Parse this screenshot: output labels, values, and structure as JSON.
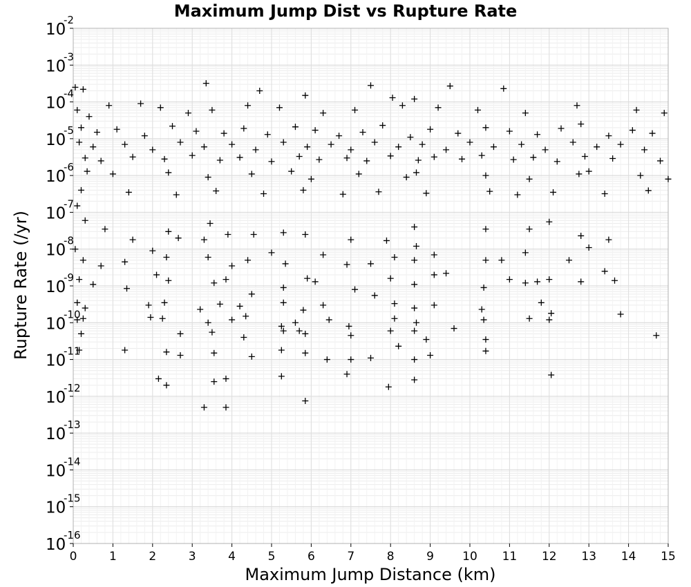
{
  "chart_data": {
    "type": "scatter",
    "title": "Maximum Jump Dist vs Rupture Rate",
    "xlabel": "Maximum Jump Distance (km)",
    "ylabel": "Rupture Rate (/yr)",
    "xlim": [
      0,
      15
    ],
    "ylim": [
      1e-16,
      0.01
    ],
    "y_scale": "log",
    "x_ticks": [
      "0",
      "1",
      "2",
      "3",
      "4",
      "5",
      "6",
      "7",
      "8",
      "9",
      "10",
      "11",
      "12",
      "13",
      "14",
      "15"
    ],
    "y_ticks": [
      {
        "base": "10",
        "exp": "-16"
      },
      {
        "base": "10",
        "exp": "-15"
      },
      {
        "base": "10",
        "exp": "-14"
      },
      {
        "base": "10",
        "exp": "-13"
      },
      {
        "base": "10",
        "exp": "-12"
      },
      {
        "base": "10",
        "exp": "-11"
      },
      {
        "base": "10",
        "exp": "-10"
      },
      {
        "base": "10",
        "exp": "-9"
      },
      {
        "base": "10",
        "exp": "-8"
      },
      {
        "base": "10",
        "exp": "-7"
      },
      {
        "base": "10",
        "exp": "-6"
      },
      {
        "base": "10",
        "exp": "-5"
      },
      {
        "base": "10",
        "exp": "-4"
      },
      {
        "base": "10",
        "exp": "-3"
      },
      {
        "base": "10",
        "exp": "-2"
      }
    ],
    "grid": true,
    "marker": "plus",
    "marker_color": "#000000",
    "points": [
      [
        0.05,
        0.00025
      ],
      [
        0.25,
        0.00022
      ],
      [
        3.35,
        0.00032
      ],
      [
        4.7,
        0.0002
      ],
      [
        5.85,
        0.00015
      ],
      [
        7.5,
        0.00028
      ],
      [
        8.05,
        0.00013
      ],
      [
        8.6,
        0.00012
      ],
      [
        9.5,
        0.00027
      ],
      [
        10.85,
        0.00023
      ],
      [
        0.1,
        6e-05
      ],
      [
        0.4,
        4e-05
      ],
      [
        0.9,
        8e-05
      ],
      [
        1.7,
        9e-05
      ],
      [
        2.2,
        7e-05
      ],
      [
        2.9,
        5e-05
      ],
      [
        3.5,
        6e-05
      ],
      [
        4.4,
        8e-05
      ],
      [
        5.2,
        7e-05
      ],
      [
        6.3,
        5e-05
      ],
      [
        7.1,
        6e-05
      ],
      [
        8.3,
        8e-05
      ],
      [
        9.2,
        7e-05
      ],
      [
        10.2,
        6e-05
      ],
      [
        11.4,
        5e-05
      ],
      [
        12.7,
        8e-05
      ],
      [
        14.2,
        6e-05
      ],
      [
        14.9,
        5e-05
      ],
      [
        0.2,
        2e-05
      ],
      [
        0.6,
        1.5e-05
      ],
      [
        1.1,
        1.8e-05
      ],
      [
        1.8,
        1.2e-05
      ],
      [
        2.5,
        2.2e-05
      ],
      [
        3.1,
        1.6e-05
      ],
      [
        3.8,
        1.4e-05
      ],
      [
        4.3,
        1.9e-05
      ],
      [
        4.9,
        1.3e-05
      ],
      [
        5.6,
        2.1e-05
      ],
      [
        6.1,
        1.7e-05
      ],
      [
        6.7,
        1.2e-05
      ],
      [
        7.3,
        1.5e-05
      ],
      [
        7.8,
        2.3e-05
      ],
      [
        8.5,
        1.1e-05
      ],
      [
        9.0,
        1.8e-05
      ],
      [
        9.7,
        1.4e-05
      ],
      [
        10.4,
        2e-05
      ],
      [
        11.0,
        1.6e-05
      ],
      [
        11.7,
        1.3e-05
      ],
      [
        12.3,
        1.9e-05
      ],
      [
        12.8,
        2.5e-05
      ],
      [
        13.5,
        1.2e-05
      ],
      [
        14.1,
        1.7e-05
      ],
      [
        14.6,
        1.4e-05
      ],
      [
        0.15,
        8e-06
      ],
      [
        0.5,
        6e-06
      ],
      [
        1.3,
        7e-06
      ],
      [
        2.0,
        5e-06
      ],
      [
        2.7,
        8e-06
      ],
      [
        3.3,
        6e-06
      ],
      [
        4.0,
        7e-06
      ],
      [
        4.6,
        5e-06
      ],
      [
        5.3,
        8e-06
      ],
      [
        5.9,
        6e-06
      ],
      [
        6.5,
        7e-06
      ],
      [
        7.0,
        5e-06
      ],
      [
        7.6,
        8e-06
      ],
      [
        8.2,
        6e-06
      ],
      [
        8.8,
        7e-06
      ],
      [
        9.4,
        5e-06
      ],
      [
        10.0,
        8e-06
      ],
      [
        10.6,
        6e-06
      ],
      [
        11.3,
        7e-06
      ],
      [
        11.9,
        5e-06
      ],
      [
        12.6,
        8e-06
      ],
      [
        13.2,
        6e-06
      ],
      [
        13.8,
        7e-06
      ],
      [
        14.4,
        5e-06
      ],
      [
        0.3,
        3e-06
      ],
      [
        0.7,
        2.5e-06
      ],
      [
        1.5,
        3.2e-06
      ],
      [
        2.3,
        2.8e-06
      ],
      [
        3.0,
        3.5e-06
      ],
      [
        3.7,
        2.6e-06
      ],
      [
        4.2,
        3.1e-06
      ],
      [
        5.0,
        2.4e-06
      ],
      [
        5.7,
        3.3e-06
      ],
      [
        6.2,
        2.7e-06
      ],
      [
        6.9,
        3e-06
      ],
      [
        7.4,
        2.5e-06
      ],
      [
        8.0,
        3.4e-06
      ],
      [
        8.7,
        2.6e-06
      ],
      [
        9.1,
        3.2e-06
      ],
      [
        9.8,
        2.8e-06
      ],
      [
        10.3,
        3.5e-06
      ],
      [
        11.1,
        2.7e-06
      ],
      [
        11.6,
        3.1e-06
      ],
      [
        12.2,
        2.4e-06
      ],
      [
        12.9,
        3.3e-06
      ],
      [
        13.6,
        2.9e-06
      ],
      [
        14.8,
        2.5e-06
      ],
      [
        0.35,
        1.3e-06
      ],
      [
        1.0,
        1.1e-06
      ],
      [
        2.4,
        1.2e-06
      ],
      [
        3.4,
        9e-07
      ],
      [
        4.5,
        1.1e-06
      ],
      [
        5.5,
        1.3e-06
      ],
      [
        6.0,
        8e-07
      ],
      [
        7.2,
        1.1e-06
      ],
      [
        8.4,
        9e-07
      ],
      [
        8.65,
        1.2e-06
      ],
      [
        10.4,
        1e-06
      ],
      [
        11.5,
        8e-07
      ],
      [
        12.75,
        1.1e-06
      ],
      [
        13.0,
        1.3e-06
      ],
      [
        14.3,
        1e-06
      ],
      [
        15.0,
        8e-07
      ],
      [
        0.2,
        4e-07
      ],
      [
        1.4,
        3.5e-07
      ],
      [
        2.6,
        3e-07
      ],
      [
        3.6,
        3.8e-07
      ],
      [
        4.8,
        3.2e-07
      ],
      [
        5.8,
        4e-07
      ],
      [
        6.8,
        3.1e-07
      ],
      [
        7.7,
        3.6e-07
      ],
      [
        8.9,
        3.3e-07
      ],
      [
        10.5,
        3.7e-07
      ],
      [
        11.2,
        3e-07
      ],
      [
        12.1,
        3.5e-07
      ],
      [
        13.4,
        3.2e-07
      ],
      [
        14.5,
        3.9e-07
      ],
      [
        0.1,
        1.5e-07
      ],
      [
        0.3,
        6e-08
      ],
      [
        0.8,
        3.5e-08
      ],
      [
        1.5,
        1.8e-08
      ],
      [
        2.4,
        3e-08
      ],
      [
        3.45,
        5e-08
      ],
      [
        3.9,
        2.5e-08
      ],
      [
        4.55,
        2.5e-08
      ],
      [
        5.3,
        2.8e-08
      ],
      [
        5.85,
        2.5e-08
      ],
      [
        7.0,
        1.8e-08
      ],
      [
        7.9,
        1.7e-08
      ],
      [
        8.6,
        4e-08
      ],
      [
        8.65,
        1.2e-08
      ],
      [
        10.4,
        3.5e-08
      ],
      [
        11.5,
        3.5e-08
      ],
      [
        12.0,
        5.5e-08
      ],
      [
        12.8,
        2.3e-08
      ],
      [
        13.5,
        1.8e-08
      ],
      [
        0.05,
        1e-08
      ],
      [
        0.25,
        5e-09
      ],
      [
        0.7,
        3.5e-09
      ],
      [
        1.3,
        4.5e-09
      ],
      [
        2.0,
        9e-09
      ],
      [
        2.35,
        6e-09
      ],
      [
        2.65,
        2e-08
      ],
      [
        3.3,
        1.8e-08
      ],
      [
        3.4,
        6e-09
      ],
      [
        4.0,
        3.5e-09
      ],
      [
        4.4,
        5e-09
      ],
      [
        5.0,
        8e-09
      ],
      [
        5.35,
        4e-09
      ],
      [
        6.3,
        7e-09
      ],
      [
        6.9,
        3.8e-09
      ],
      [
        7.5,
        4e-09
      ],
      [
        8.1,
        6e-09
      ],
      [
        8.6,
        5e-09
      ],
      [
        9.1,
        7e-09
      ],
      [
        10.4,
        5e-09
      ],
      [
        10.8,
        5e-09
      ],
      [
        11.4,
        8e-09
      ],
      [
        12.5,
        5e-09
      ],
      [
        13.0,
        1.1e-08
      ],
      [
        0.15,
        1.5e-09
      ],
      [
        0.5,
        1.1e-09
      ],
      [
        1.35,
        8.5e-10
      ],
      [
        2.1,
        2e-09
      ],
      [
        2.4,
        1.4e-09
      ],
      [
        3.55,
        1.2e-09
      ],
      [
        3.85,
        1.5e-09
      ],
      [
        4.5,
        6e-10
      ],
      [
        5.3,
        9e-10
      ],
      [
        5.9,
        1.6e-09
      ],
      [
        6.1,
        1.3e-09
      ],
      [
        7.1,
        8e-10
      ],
      [
        7.6,
        5.5e-10
      ],
      [
        8.0,
        1.6e-09
      ],
      [
        8.6,
        1.1e-09
      ],
      [
        9.1,
        2e-09
      ],
      [
        9.4,
        2.2e-09
      ],
      [
        10.35,
        9e-10
      ],
      [
        11.0,
        1.5e-09
      ],
      [
        11.4,
        1.2e-09
      ],
      [
        11.7,
        1.3e-09
      ],
      [
        12.0,
        1.5e-09
      ],
      [
        12.8,
        1.3e-09
      ],
      [
        13.4,
        2.5e-09
      ],
      [
        13.65,
        1.4e-09
      ],
      [
        0.1,
        3.5e-10
      ],
      [
        0.3,
        2.5e-10
      ],
      [
        1.9,
        3e-10
      ],
      [
        2.3,
        3.5e-10
      ],
      [
        3.2,
        2.3e-10
      ],
      [
        3.7,
        3.2e-10
      ],
      [
        4.2,
        2.8e-10
      ],
      [
        5.3,
        3.5e-10
      ],
      [
        5.8,
        2.2e-10
      ],
      [
        6.3,
        3e-10
      ],
      [
        8.1,
        3.3e-10
      ],
      [
        8.6,
        2.5e-10
      ],
      [
        9.1,
        3e-10
      ],
      [
        10.3,
        2.3e-10
      ],
      [
        11.8,
        3.5e-10
      ],
      [
        12.05,
        1.8e-10
      ],
      [
        0.1,
        1.2e-10
      ],
      [
        0.25,
        1.3e-10
      ],
      [
        1.95,
        1.4e-10
      ],
      [
        2.25,
        1.3e-10
      ],
      [
        3.4,
        1e-10
      ],
      [
        4.0,
        1.2e-10
      ],
      [
        4.35,
        1.5e-10
      ],
      [
        5.25,
        8e-11
      ],
      [
        5.6,
        1e-10
      ],
      [
        6.45,
        1.2e-10
      ],
      [
        6.95,
        8e-11
      ],
      [
        8.1,
        1.3e-10
      ],
      [
        8.65,
        1e-10
      ],
      [
        9.6,
        7e-11
      ],
      [
        10.35,
        1.2e-10
      ],
      [
        11.5,
        1.3e-10
      ],
      [
        12.0,
        1.2e-10
      ],
      [
        13.8,
        1.7e-10
      ],
      [
        0.2,
        5e-11
      ],
      [
        2.7,
        5e-11
      ],
      [
        3.5,
        5.5e-11
      ],
      [
        4.3,
        4e-11
      ],
      [
        5.3,
        6e-11
      ],
      [
        5.7,
        6e-11
      ],
      [
        5.85,
        5e-11
      ],
      [
        7.0,
        4.5e-11
      ],
      [
        8.0,
        6e-11
      ],
      [
        8.6,
        6e-11
      ],
      [
        8.9,
        3.5e-11
      ],
      [
        10.4,
        3.5e-11
      ],
      [
        14.7,
        4.5e-11
      ],
      [
        0.15,
        1.8e-11
      ],
      [
        1.3,
        1.8e-11
      ],
      [
        2.35,
        1.6e-11
      ],
      [
        2.7,
        1.3e-11
      ],
      [
        3.55,
        1.5e-11
      ],
      [
        4.5,
        1.2e-11
      ],
      [
        5.25,
        1.8e-11
      ],
      [
        5.85,
        1.5e-11
      ],
      [
        6.4,
        1e-11
      ],
      [
        7.0,
        1e-11
      ],
      [
        7.5,
        1.1e-11
      ],
      [
        8.2,
        2.3e-11
      ],
      [
        8.6,
        1e-11
      ],
      [
        9.0,
        1.3e-11
      ],
      [
        10.4,
        1.7e-11
      ],
      [
        2.15,
        3e-12
      ],
      [
        2.35,
        2e-12
      ],
      [
        3.55,
        2.5e-12
      ],
      [
        3.85,
        3e-12
      ],
      [
        5.25,
        3.5e-12
      ],
      [
        6.9,
        4e-12
      ],
      [
        7.95,
        1.8e-12
      ],
      [
        8.6,
        2.8e-12
      ],
      [
        12.05,
        3.8e-12
      ],
      [
        5.85,
        7.5e-13
      ],
      [
        3.3,
        5e-13
      ],
      [
        3.85,
        5e-13
      ]
    ]
  }
}
